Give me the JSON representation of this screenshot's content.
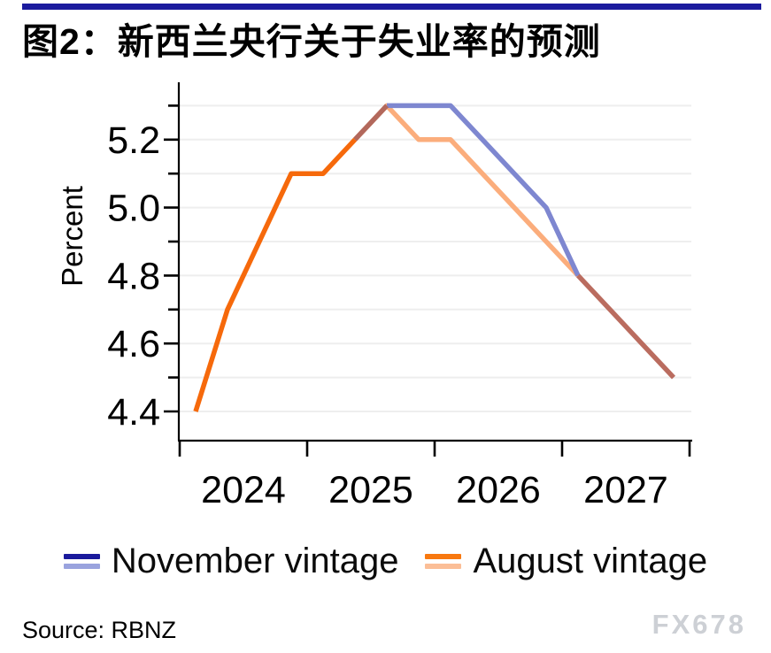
{
  "header": {
    "bar_color": "#1B1B9E",
    "title": "图2：新西兰央行关于失业率的预测"
  },
  "chart_data": {
    "type": "line",
    "title": "图2：新西兰央行关于失业率的预测",
    "xlabel": "",
    "ylabel": "Percent",
    "x_unit": "decimal_year_quarter_mid",
    "xlim": [
      2024,
      2028
    ],
    "ylim": [
      4.31,
      5.37
    ],
    "grid": "horizontal",
    "gridline_color": "#EEEEEE",
    "axis_color": "#000000",
    "x_axis_ticks": [
      2024,
      2025,
      2026,
      2027,
      2028
    ],
    "x_tick_labels": [
      {
        "center": 2024.5,
        "label": "2024"
      },
      {
        "center": 2025.5,
        "label": "2025"
      },
      {
        "center": 2026.5,
        "label": "2026"
      },
      {
        "center": 2027.5,
        "label": "2027"
      }
    ],
    "y_ticks_labeled": [
      {
        "value": 5.2,
        "label": "5.2"
      },
      {
        "value": 5.0,
        "label": "5.0"
      },
      {
        "value": 4.8,
        "label": "4.8"
      },
      {
        "value": 4.6,
        "label": "4.6"
      },
      {
        "value": 4.4,
        "label": "4.4"
      }
    ],
    "y_ticks_minor": [
      5.3,
      5.1,
      4.9,
      4.7,
      4.5
    ],
    "y_gridlines": [
      4.4,
      4.5,
      4.6,
      4.7,
      4.8,
      4.9,
      5.0,
      5.1,
      5.2,
      5.3
    ],
    "legend_position": "bottom-center",
    "series": [
      {
        "name": "November vintage",
        "points": [
          [
            2025.375,
            5.2
          ],
          [
            2025.625,
            5.3
          ],
          [
            2025.875,
            5.3
          ],
          [
            2026.125,
            5.3
          ],
          [
            2026.375,
            5.2
          ],
          [
            2026.625,
            5.1
          ],
          [
            2026.875,
            5.0
          ],
          [
            2027.125,
            4.8
          ],
          [
            2027.375,
            4.7
          ],
          [
            2027.625,
            4.6
          ],
          [
            2027.875,
            4.5
          ]
        ],
        "actual_until": 2025.625,
        "legend_colors": [
          "#1A1A9C",
          "#9AA3DE"
        ]
      },
      {
        "name": "August vintage",
        "points": [
          [
            2024.125,
            4.4
          ],
          [
            2024.375,
            4.7
          ],
          [
            2024.625,
            4.9
          ],
          [
            2024.875,
            5.1
          ],
          [
            2025.125,
            5.1
          ],
          [
            2025.375,
            5.2
          ],
          [
            2025.625,
            5.3
          ],
          [
            2025.875,
            5.2
          ],
          [
            2026.125,
            5.2
          ],
          [
            2026.375,
            5.1
          ],
          [
            2026.625,
            5.0
          ],
          [
            2026.875,
            4.9
          ],
          [
            2027.125,
            4.8
          ],
          [
            2027.375,
            4.7
          ],
          [
            2027.625,
            4.6
          ],
          [
            2027.875,
            4.5
          ]
        ],
        "actual_until": 2025.375,
        "legend_colors": [
          "#F8780F",
          "#FBBE97"
        ]
      }
    ],
    "render_segments": [
      {
        "name": "august-forecast-line",
        "color": "#FBAD7C",
        "width": 5.5,
        "points": [
          [
            2025.375,
            5.2
          ],
          [
            2025.625,
            5.3
          ],
          [
            2025.875,
            5.2
          ],
          [
            2026.125,
            5.2
          ],
          [
            2026.375,
            5.1
          ],
          [
            2026.625,
            5.0
          ],
          [
            2026.875,
            4.9
          ],
          [
            2027.125,
            4.8
          ]
        ]
      },
      {
        "name": "november-vintage-line",
        "color": "#7E87D0",
        "width": 5.5,
        "points": [
          [
            2025.625,
            5.3
          ],
          [
            2025.875,
            5.3
          ],
          [
            2026.125,
            5.3
          ],
          [
            2026.375,
            5.2
          ],
          [
            2026.625,
            5.1
          ],
          [
            2026.875,
            5.0
          ],
          [
            2027.125,
            4.8
          ]
        ]
      },
      {
        "name": "overlap-rise-line",
        "color": "#B2685C",
        "width": 5.5,
        "points": [
          [
            2025.375,
            5.2
          ],
          [
            2025.625,
            5.3
          ]
        ]
      },
      {
        "name": "overlap-tail-line",
        "color": "#BA6C5F",
        "width": 5.5,
        "points": [
          [
            2027.125,
            4.8
          ],
          [
            2027.375,
            4.7
          ],
          [
            2027.625,
            4.6
          ],
          [
            2027.875,
            4.5
          ]
        ]
      },
      {
        "name": "august-actual-line",
        "color": "#F6690B",
        "width": 5.5,
        "points": [
          [
            2024.125,
            4.4
          ],
          [
            2024.375,
            4.7
          ],
          [
            2024.625,
            4.9
          ],
          [
            2024.875,
            5.1
          ],
          [
            2025.125,
            5.1
          ],
          [
            2025.375,
            5.2
          ]
        ]
      }
    ]
  },
  "legend": {
    "items": [
      {
        "label": "November vintage",
        "colors": [
          "#1A1A9C",
          "#9AA3DE"
        ]
      },
      {
        "label": "August vintage",
        "colors": [
          "#F8780F",
          "#FBBE97"
        ]
      }
    ]
  },
  "footer": {
    "source": "Source: RBNZ",
    "watermark": "FX678"
  }
}
